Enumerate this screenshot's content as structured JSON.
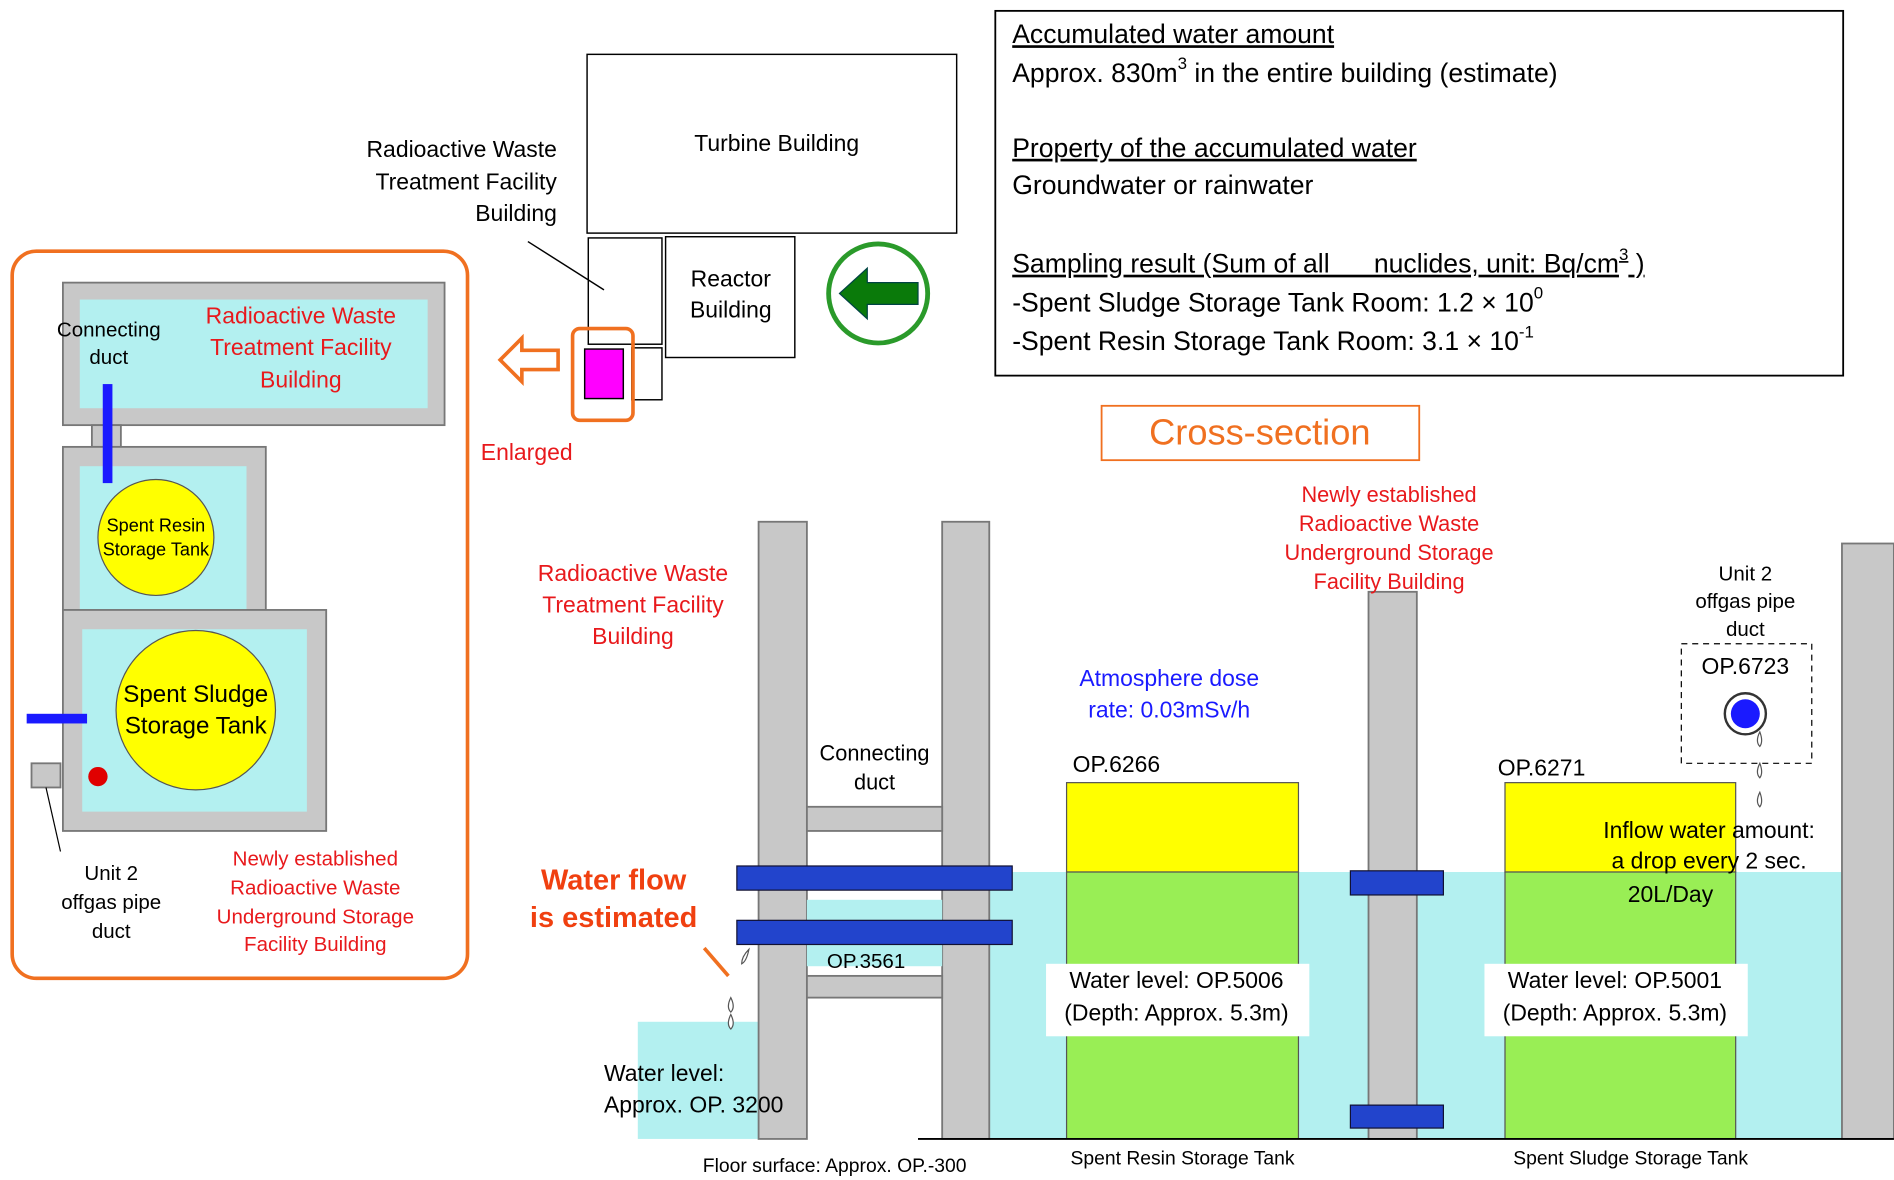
{
  "info": {
    "amount_heading": "Accumulated water amount",
    "amount": {
      "pre": "Approx. 830m",
      "sup": "3",
      "post": " in the entire building (estimate)"
    },
    "property_heading": "Property of the accumulated water",
    "property": "Groundwater or rainwater",
    "sampling_heading": {
      "pre": "Sampling result (Sum of all      nuclides, unit: Bq/cm",
      "sup": "3",
      "post": " )"
    },
    "sludge": {
      "pre": "-Spent Sludge Storage Tank Room: 1.2 × 10",
      "sup": "0"
    },
    "resin": {
      "pre": "-Spent Resin Storage Tank Room: 3.1 × 10",
      "sup": "-1"
    }
  },
  "plan": {
    "turbine": "Turbine Building",
    "reactor": [
      "Reactor",
      "Building"
    ],
    "radwaste": [
      "Radioactive Waste",
      "Treatment Facility",
      "Building"
    ],
    "enlarged": "Enlarged"
  },
  "enlarged_view": {
    "radwaste": [
      "Radioactive Waste",
      "Treatment Facility",
      "Building"
    ],
    "connecting_duct": [
      "Connecting",
      "duct"
    ],
    "resin_tank": [
      "Spent Resin",
      "Storage Tank"
    ],
    "sludge_tank": [
      "Spent Sludge",
      "Storage Tank"
    ],
    "offgas": [
      "Unit 2",
      "offgas pipe",
      "duct"
    ],
    "new_building": [
      "Newly established",
      "Radioactive Waste",
      "Underground Storage",
      "Facility Building"
    ]
  },
  "cross_section": {
    "title": "Cross-section",
    "radwaste": [
      "Radioactive Waste",
      "Treatment Facility",
      "Building"
    ],
    "new_building": [
      "Newly established",
      "Radioactive Waste",
      "Underground Storage",
      "Facility Building"
    ],
    "dose": [
      "Atmosphere dose",
      "rate: 0.03mSv/h"
    ],
    "connecting_duct": [
      "Connecting",
      "duct"
    ],
    "op3561": "OP.3561",
    "water_flow": [
      "Water flow",
      "is estimated"
    ],
    "left_level": [
      "Water level:",
      "Approx. OP. 3200"
    ],
    "op6266": "OP.6266",
    "op6271": "OP.6271",
    "offgas": [
      "Unit 2",
      "offgas pipe",
      "duct"
    ],
    "op6723": "OP.6723",
    "inflow": [
      "Inflow water amount:",
      "a drop every 2 sec.",
      "20L/Day"
    ],
    "resin_level": [
      "Water level: OP.5006",
      "(Depth: Approx. 5.3m)"
    ],
    "sludge_level": [
      "Water level: OP.5001",
      "(Depth: Approx. 5.3m)"
    ],
    "floor": "Floor surface: Approx. OP.-300",
    "resin_tank": "Spent Resin Storage Tank",
    "sludge_tank": "Spent Sludge Storage Tank"
  }
}
